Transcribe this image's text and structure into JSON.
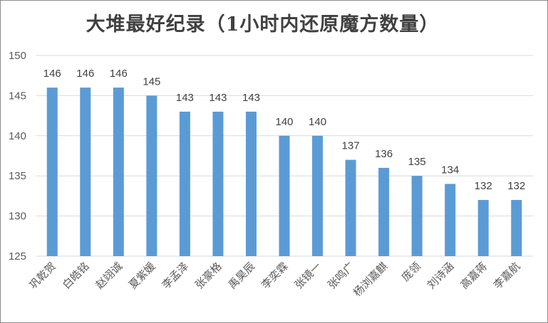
{
  "chart_data": {
    "type": "bar",
    "title": "大堆最好纪录（1小时内还原魔方数量）",
    "xlabel": "",
    "ylabel": "",
    "categories": [
      "巩乾贺",
      "白皓铭",
      "赵翊诚",
      "夏紫媛",
      "李孟泽",
      "张豪格",
      "禹昊辰",
      "李奕霖",
      "张镜一",
      "张鸣广",
      "杨浏嘉麒",
      "庞领",
      "刘诗涵",
      "高嘉蒋",
      "李嘉航"
    ],
    "values": [
      146,
      146,
      146,
      145,
      143,
      143,
      143,
      140,
      140,
      137,
      136,
      135,
      134,
      132,
      132
    ],
    "ylim": [
      125,
      150
    ],
    "yticks": [
      125,
      130,
      135,
      140,
      145,
      150
    ],
    "grid": true,
    "legend": "none",
    "colors": {
      "bar": "#5b9bd5",
      "grid": "#d9d9d9",
      "axis": "#d9d9d9"
    }
  }
}
